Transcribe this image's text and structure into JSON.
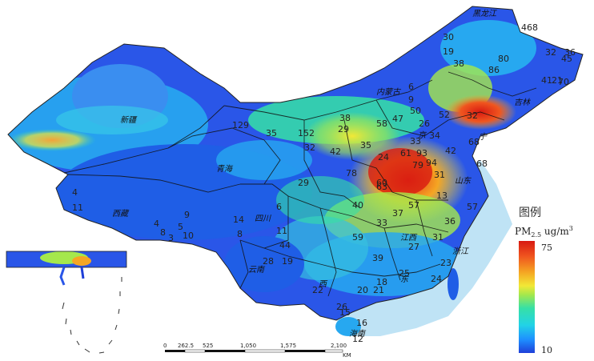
{
  "legend": {
    "title": "图例",
    "unit_main": "PM",
    "unit_sub": "2.5",
    "unit_rest": " ug/m",
    "unit_sup": "3",
    "max_label": "75",
    "min_label": "10",
    "gradient_colors": [
      "#1f3fd8",
      "#1e90ff",
      "#22d3e6",
      "#36e0a6",
      "#a5e84c",
      "#f2e836",
      "#f5a623",
      "#f0561f",
      "#d81a12"
    ]
  },
  "scale_bar": {
    "ticks": [
      "0",
      "262.5",
      "525",
      "1,050",
      "1,575",
      "2,100"
    ],
    "unit": "KM"
  },
  "provinces": [
    {
      "name": "新疆"
    },
    {
      "name": "青海"
    },
    {
      "name": "西藏"
    },
    {
      "name": "四川"
    },
    {
      "name": "云南"
    },
    {
      "name": "内蒙古"
    },
    {
      "name": "黑龙江"
    },
    {
      "name": "吉林"
    },
    {
      "name": "宁"
    },
    {
      "name": "山东"
    },
    {
      "name": "江西"
    },
    {
      "name": "浙江"
    },
    {
      "name": "海南"
    },
    {
      "name": "西"
    },
    {
      "name": "东"
    },
    {
      "name": "京"
    }
  ],
  "site_values": [
    "30",
    "19",
    "468",
    "32",
    "36",
    "45",
    "80",
    "86",
    "41",
    "21",
    "70",
    "38",
    "52",
    "32",
    "6",
    "9",
    "129",
    "35",
    "152",
    "38",
    "32",
    "42",
    "29",
    "35",
    "24",
    "33",
    "4",
    "11",
    "4",
    "8",
    "5",
    "9",
    "10",
    "3",
    "14",
    "8",
    "11",
    "6",
    "40",
    "29",
    "78",
    "60",
    "68",
    "31",
    "13",
    "57",
    "44",
    "28",
    "19",
    "59",
    "39",
    "21",
    "18",
    "25",
    "22",
    "20",
    "26",
    "15",
    "12",
    "16",
    "24",
    "23",
    "27",
    "36",
    "31",
    "33",
    "50",
    "58",
    "47",
    "34",
    "42",
    "26",
    "63",
    "68",
    "79",
    "37",
    "57",
    "61",
    "93",
    "94"
  ]
}
